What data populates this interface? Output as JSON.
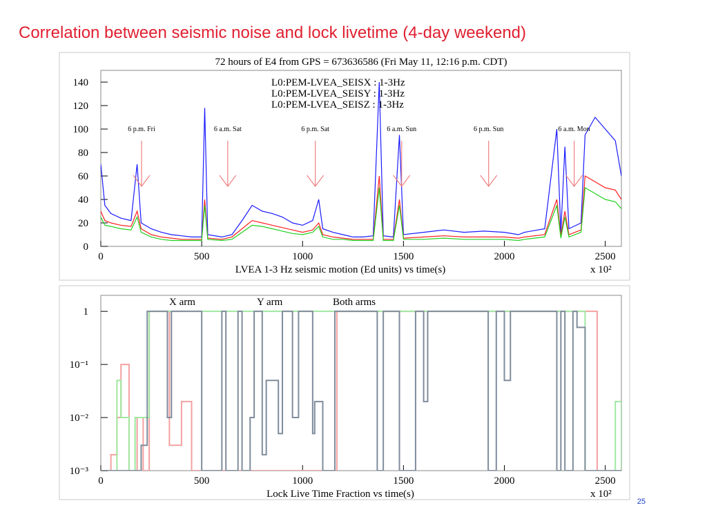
{
  "slide_title": "Correlation between seismic noise and lock livetime (4-day  weekend)",
  "page_number": "25",
  "chart_data": [
    {
      "type": "line",
      "title": "72 hours of E4 from GPS = 673636586 (Fri May 11, 12:16 p.m. CDT)",
      "x_label": "LVEA 1-3 Hz seismic motion (Ed units) vs time(s)",
      "x_multiplier": "x 10²",
      "xlim": [
        0,
        2580
      ],
      "xticks": [
        0,
        500,
        1000,
        1500,
        2000,
        2500
      ],
      "ylim": [
        0,
        150
      ],
      "yticks": [
        0,
        20,
        40,
        60,
        80,
        100,
        120,
        140
      ],
      "x": [
        0,
        20,
        50,
        100,
        150,
        180,
        200,
        250,
        300,
        350,
        400,
        450,
        500,
        515,
        530,
        600,
        650,
        700,
        750,
        800,
        850,
        900,
        950,
        1000,
        1050,
        1080,
        1100,
        1150,
        1200,
        1250,
        1300,
        1350,
        1380,
        1400,
        1450,
        1480,
        1500,
        1600,
        1700,
        1800,
        1900,
        2000,
        2070,
        2100,
        2200,
        2260,
        2280,
        2300,
        2320,
        2380,
        2400,
        2450,
        2500,
        2550,
        2580
      ],
      "series": [
        {
          "name": "L0:PEM-LVEA_SEISZ : 1-3Hz",
          "color": "#1a1aff",
          "values": [
            70,
            35,
            28,
            24,
            22,
            70,
            20,
            15,
            12,
            10,
            9,
            8,
            8,
            118,
            10,
            8,
            10,
            22,
            35,
            30,
            28,
            25,
            20,
            18,
            22,
            40,
            15,
            12,
            10,
            8,
            8,
            9,
            140,
            9,
            8,
            95,
            10,
            12,
            14,
            12,
            13,
            12,
            10,
            12,
            15,
            100,
            12,
            85,
            15,
            20,
            95,
            110,
            100,
            90,
            60
          ]
        },
        {
          "name": "L0:PEM-LVEA_SEISX : 1-3Hz",
          "color": "#ff2020",
          "values": [
            30,
            22,
            20,
            18,
            17,
            30,
            15,
            10,
            8,
            7,
            6,
            6,
            6,
            40,
            7,
            6,
            8,
            15,
            22,
            20,
            18,
            16,
            14,
            12,
            14,
            20,
            10,
            8,
            7,
            6,
            6,
            6,
            60,
            6,
            6,
            40,
            7,
            8,
            9,
            8,
            8,
            8,
            7,
            8,
            10,
            40,
            9,
            30,
            10,
            14,
            60,
            55,
            50,
            48,
            40
          ]
        },
        {
          "name": "L0:PEM-LVEA_SEISY : 1-3Hz",
          "color": "#20d020",
          "values": [
            25,
            18,
            17,
            15,
            14,
            25,
            12,
            8,
            6,
            5,
            5,
            5,
            5,
            35,
            6,
            5,
            6,
            12,
            18,
            17,
            15,
            13,
            11,
            10,
            12,
            17,
            8,
            6,
            6,
            5,
            5,
            5,
            50,
            5,
            5,
            35,
            6,
            6,
            7,
            6,
            6,
            6,
            5,
            6,
            8,
            35,
            7,
            25,
            8,
            12,
            50,
            45,
            40,
            38,
            32
          ]
        }
      ],
      "legend_order": [
        1,
        2,
        0
      ],
      "annotation_color": "#ff3030",
      "annotations": [
        {
          "text": "6 p.m. Fri",
          "x": 202
        },
        {
          "text": "6 a.m. Sat",
          "x": 629
        },
        {
          "text": "6 p.m. Sat",
          "x": 1063
        },
        {
          "text": "6 a.m. Sun",
          "x": 1491
        },
        {
          "text": "6 p.m. Sun",
          "x": 1922
        },
        {
          "text": "6 a.m. Mon",
          "x": 2346
        }
      ]
    },
    {
      "type": "line",
      "yscale": "log",
      "drawstyle": "steps",
      "x_label": "Lock Live Time Fraction vs time(s)",
      "x_multiplier": "x 10²",
      "xlim": [
        0,
        2580
      ],
      "xticks": [
        0,
        500,
        1000,
        1500,
        2000,
        2500
      ],
      "ylim": [
        0.001,
        2
      ],
      "yticks": [
        {
          "value": 0.001,
          "label": "10⁻³"
        },
        {
          "value": 0.01,
          "label": "10⁻²"
        },
        {
          "value": 0.1,
          "label": "10⁻¹"
        },
        1
      ],
      "series": [
        {
          "name": "X arm",
          "color": "#f4a0a0",
          "legend_color": "#ff2020",
          "x": [
            0,
            50,
            80,
            100,
            140,
            180,
            210,
            240,
            340,
            400,
            450,
            1150,
            1170,
            2400,
            2460,
            2500
          ],
          "values": [
            0.001,
            0.002,
            0.01,
            0.1,
            0.001,
            0.01,
            0.001,
            1,
            0.003,
            0.02,
            0.001,
            0.001,
            1,
            1,
            0.001,
            0.001
          ]
        },
        {
          "name": "Y arm",
          "color": "#a0e8a0",
          "legend_color": "#20d020",
          "x": [
            0,
            80,
            100,
            140,
            170,
            240,
            500,
            1160,
            2400,
            2520,
            2550,
            2580
          ],
          "values": [
            0.001,
            0.05,
            0.01,
            0.001,
            0.01,
            1,
            1,
            1,
            0.001,
            0.001,
            0.02,
            0.001
          ]
        },
        {
          "name": "Both arms",
          "color": "#7f8c9c",
          "legend_color": "#1a1aff",
          "x": [
            0,
            200,
            230,
            330,
            350,
            480,
            500,
            600,
            620,
            680,
            700,
            740,
            760,
            800,
            820,
            880,
            900,
            950,
            980,
            1050,
            1060,
            1100,
            1160,
            1180,
            1350,
            1370,
            1400,
            1460,
            1480,
            1560,
            1600,
            1620,
            1900,
            1920,
            1960,
            2000,
            2030,
            2200,
            2240,
            2260,
            2280,
            2300,
            2340,
            2360,
            2400
          ],
          "values": [
            0.001,
            0.003,
            1,
            0.01,
            1,
            1,
            0.001,
            1,
            0.001,
            1,
            0.001,
            0.01,
            1,
            0.002,
            0.05,
            0.005,
            1,
            0.01,
            1,
            0.005,
            0.02,
            0.001,
            1,
            1,
            1,
            0.001,
            1,
            1,
            0.001,
            1,
            0.02,
            1,
            1,
            0.001,
            1,
            0.05,
            1,
            1,
            1,
            0.001,
            1,
            0.001,
            1,
            0.5,
            0.001
          ]
        }
      ]
    }
  ]
}
